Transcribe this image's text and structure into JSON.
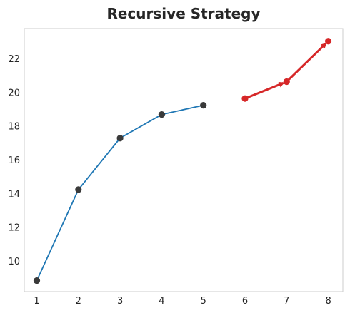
{
  "chart_data": {
    "type": "line",
    "title": "Recursive Strategy",
    "xlabel": "",
    "ylabel": "",
    "xlim": [
      0.7,
      8.35
    ],
    "ylim": [
      8.2,
      23.8
    ],
    "x_ticks": [
      1,
      2,
      3,
      4,
      5,
      6,
      7,
      8
    ],
    "y_ticks": [
      10,
      12,
      14,
      16,
      18,
      20,
      22
    ],
    "grid": false,
    "series": [
      {
        "role": "history",
        "color": "#1f77b4",
        "marker_color": "#3a3a3a",
        "points": [
          [
            1,
            8.85
          ],
          [
            2,
            14.25
          ],
          [
            3,
            17.3
          ],
          [
            4,
            18.7
          ],
          [
            5,
            19.25
          ]
        ]
      },
      {
        "role": "forecast",
        "color": "#d62728",
        "marker_color": "#d62728",
        "points": [
          [
            6,
            19.65
          ],
          [
            7,
            20.65
          ],
          [
            8,
            23.05
          ]
        ]
      }
    ]
  }
}
